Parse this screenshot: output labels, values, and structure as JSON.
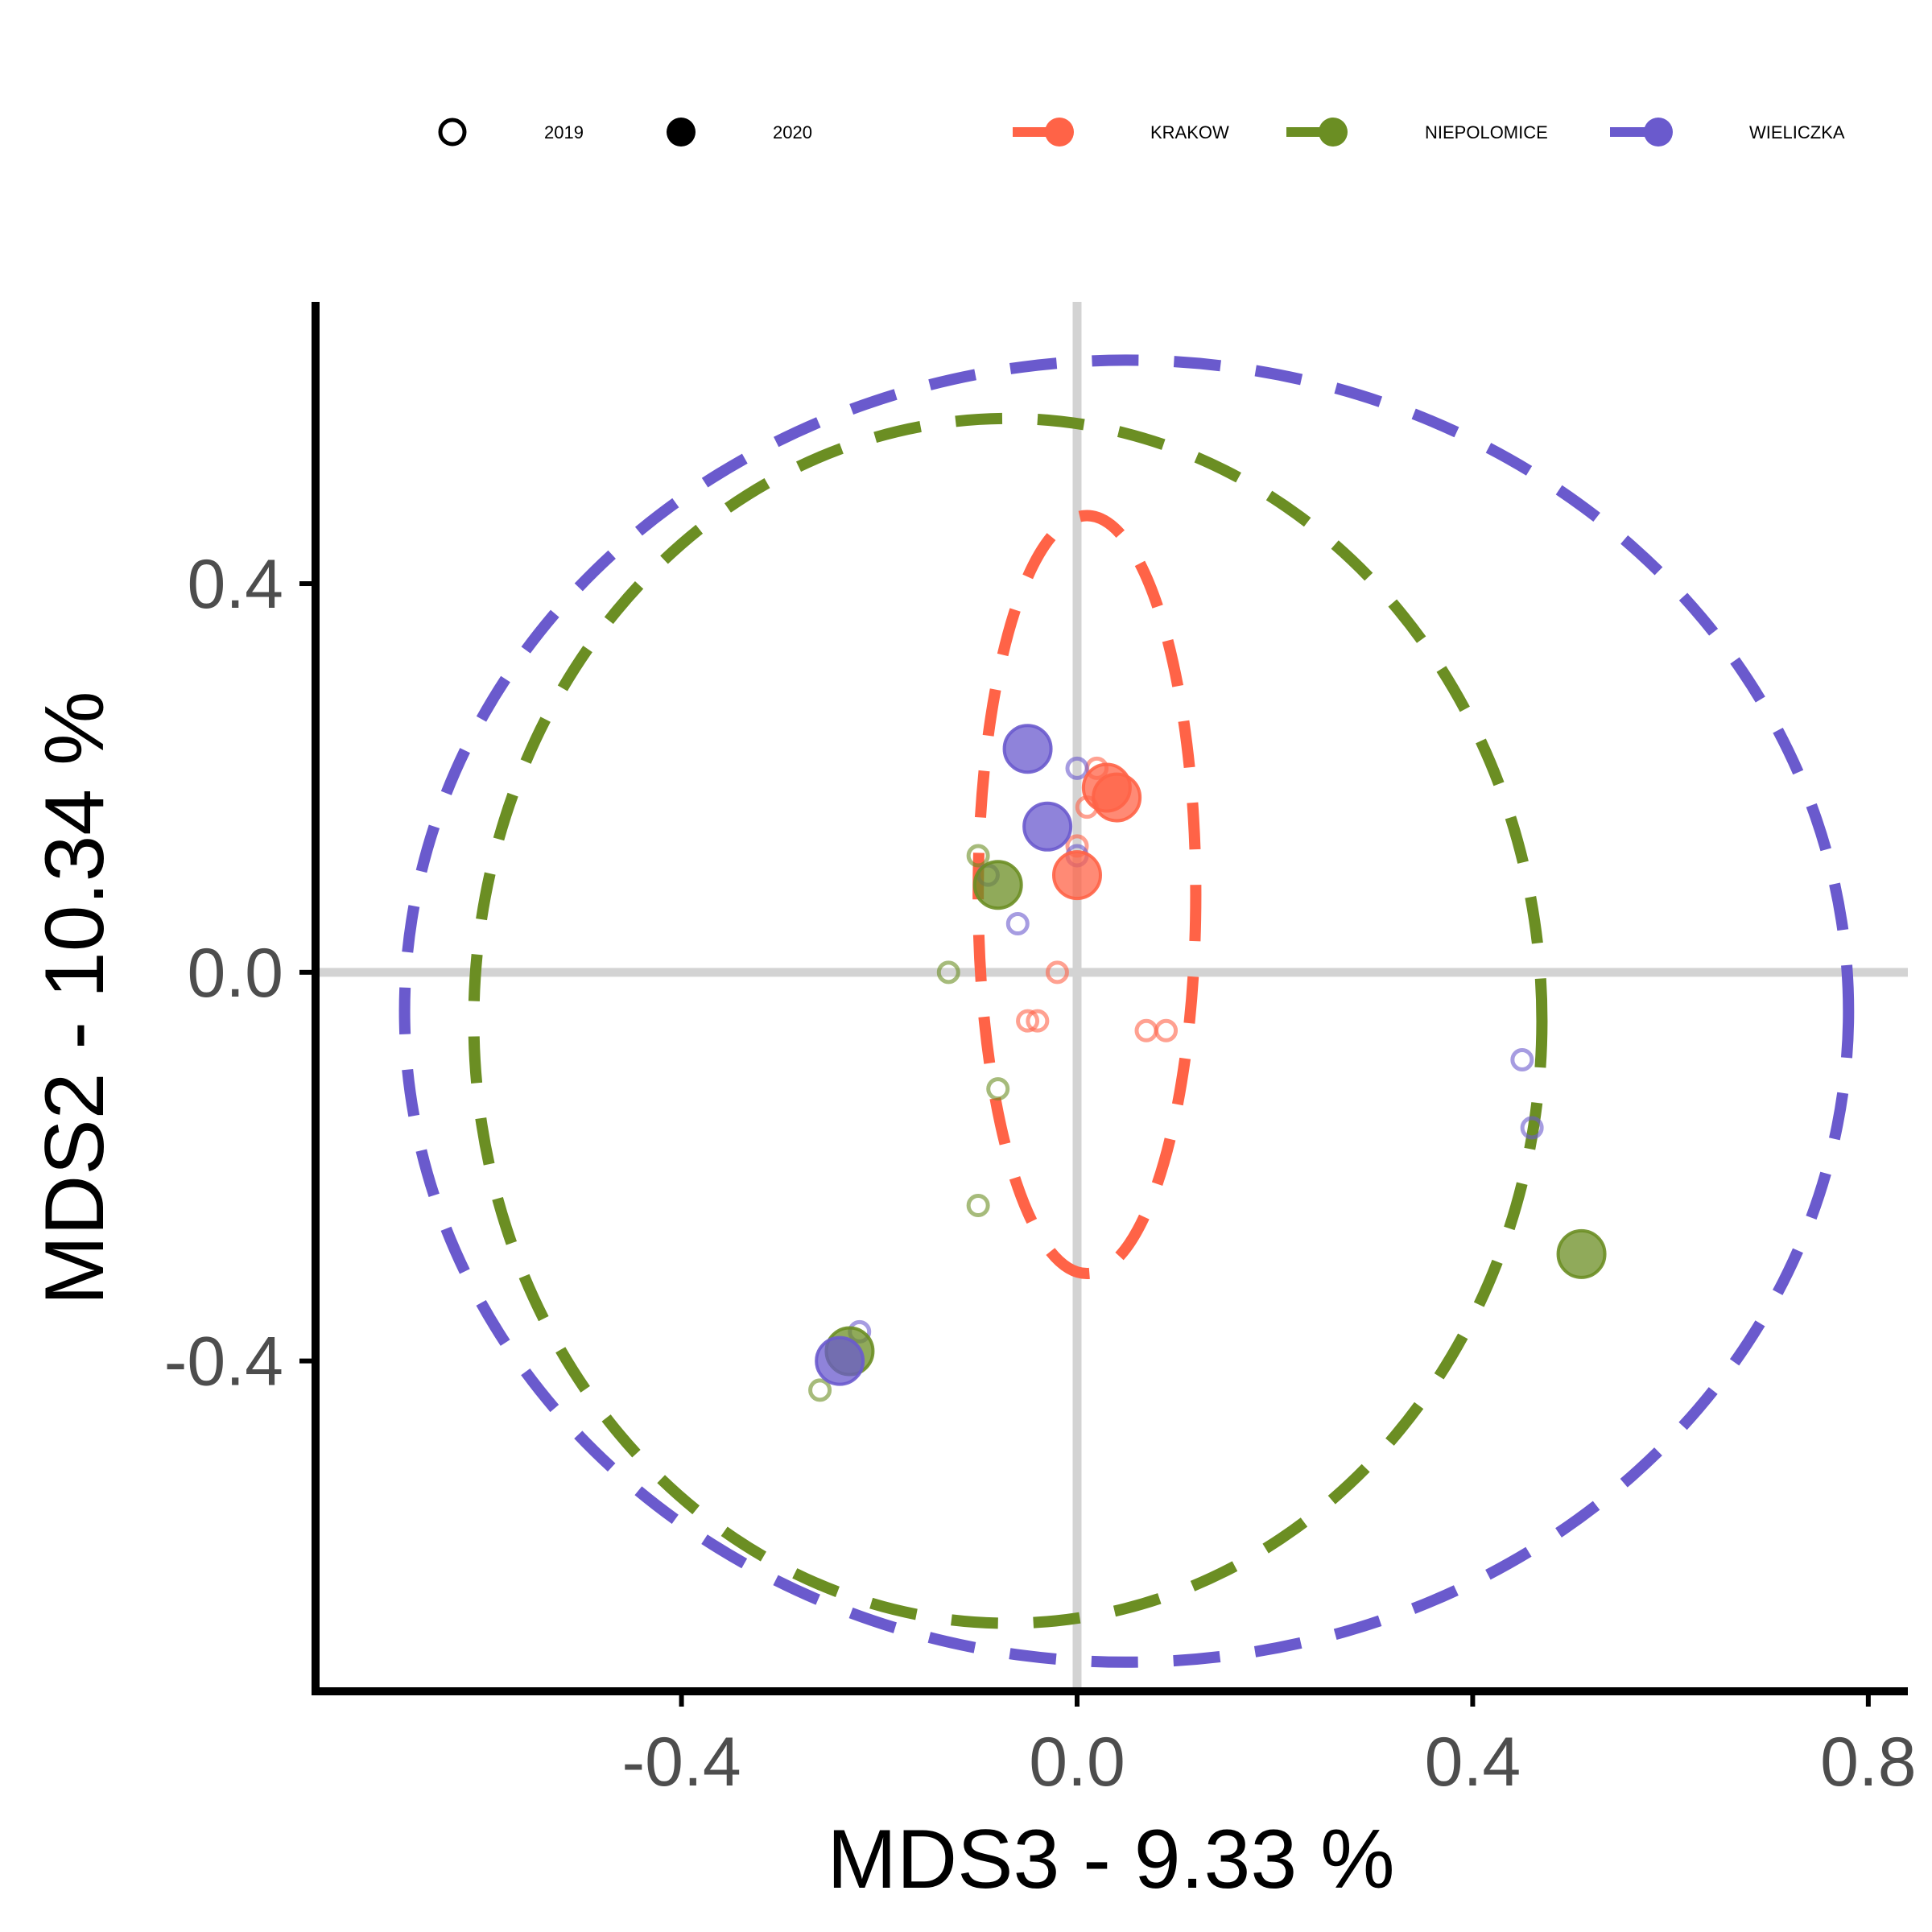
{
  "chart_data": {
    "type": "scatter",
    "title": "",
    "xlabel": "MDS3 - 9.33 %",
    "ylabel": "MDS2 - 10.34 %",
    "xlim": [
      -0.77,
      0.84
    ],
    "ylim": [
      -0.74,
      0.69
    ],
    "x_ticks": [
      -0.4,
      0.0,
      0.4,
      0.8
    ],
    "y_ticks": [
      -0.4,
      0.0,
      0.4
    ],
    "x_tick_labels": [
      "-0.4",
      "0.0",
      "0.4",
      "0.8"
    ],
    "y_tick_labels": [
      "-0.4",
      "0.0",
      "0.4"
    ],
    "reference_lines": {
      "x": 0,
      "y": 0
    },
    "grid": false,
    "legend_position": "top",
    "shape_legend": [
      {
        "label": "2019",
        "filled": false
      },
      {
        "label": "2020",
        "filled": true
      }
    ],
    "series": [
      {
        "name": "KRAKOW",
        "color": "#FF6347",
        "ellipse": {
          "cx": 0.01,
          "cy": 0.08,
          "rx": 0.11,
          "ry": 0.39
        },
        "points": [
          {
            "x": 0.02,
            "y": 0.21,
            "year": "2019",
            "size": "small"
          },
          {
            "x": 0.01,
            "y": 0.17,
            "year": "2019",
            "size": "small"
          },
          {
            "x": 0.0,
            "y": 0.13,
            "year": "2019",
            "size": "small"
          },
          {
            "x": -0.02,
            "y": 0.0,
            "year": "2019",
            "size": "small"
          },
          {
            "x": -0.05,
            "y": -0.05,
            "year": "2019",
            "size": "small"
          },
          {
            "x": -0.04,
            "y": -0.05,
            "year": "2019",
            "size": "small"
          },
          {
            "x": 0.07,
            "y": -0.06,
            "year": "2019",
            "size": "small"
          },
          {
            "x": 0.09,
            "y": -0.06,
            "year": "2019",
            "size": "small"
          },
          {
            "x": 0.03,
            "y": 0.19,
            "year": "2020",
            "size": "large"
          },
          {
            "x": 0.04,
            "y": 0.18,
            "year": "2020",
            "size": "large"
          },
          {
            "x": 0.0,
            "y": 0.1,
            "year": "2020",
            "size": "large"
          }
        ]
      },
      {
        "name": "NIEPOLOMICE",
        "color": "#6B8E23",
        "ellipse": {
          "cx": -0.07,
          "cy": -0.05,
          "rx": 0.54,
          "ry": 0.62
        },
        "points": [
          {
            "x": -0.1,
            "y": 0.12,
            "year": "2019",
            "size": "small"
          },
          {
            "x": -0.13,
            "y": 0.0,
            "year": "2019",
            "size": "small"
          },
          {
            "x": -0.08,
            "y": -0.12,
            "year": "2019",
            "size": "small"
          },
          {
            "x": -0.1,
            "y": -0.24,
            "year": "2019",
            "size": "small"
          },
          {
            "x": -0.26,
            "y": -0.43,
            "year": "2019",
            "size": "small"
          },
          {
            "x": -0.08,
            "y": 0.09,
            "year": "2020",
            "size": "large"
          },
          {
            "x": -0.23,
            "y": -0.39,
            "year": "2020",
            "size": "large"
          },
          {
            "x": 0.51,
            "y": -0.29,
            "year": "2020",
            "size": "large"
          }
        ]
      },
      {
        "name": "WIELICZKA",
        "color": "#6A5ACD",
        "ellipse": {
          "cx": 0.05,
          "cy": -0.04,
          "rx": 0.73,
          "ry": 0.67
        },
        "points": [
          {
            "x": 0.0,
            "y": 0.21,
            "year": "2019",
            "size": "small"
          },
          {
            "x": 0.0,
            "y": 0.12,
            "year": "2019",
            "size": "small"
          },
          {
            "x": -0.09,
            "y": 0.1,
            "year": "2019",
            "size": "small"
          },
          {
            "x": -0.06,
            "y": 0.05,
            "year": "2019",
            "size": "small"
          },
          {
            "x": 0.45,
            "y": -0.09,
            "year": "2019",
            "size": "small"
          },
          {
            "x": 0.46,
            "y": -0.16,
            "year": "2019",
            "size": "small"
          },
          {
            "x": -0.22,
            "y": -0.37,
            "year": "2019",
            "size": "small"
          },
          {
            "x": -0.05,
            "y": 0.23,
            "year": "2020",
            "size": "large"
          },
          {
            "x": -0.03,
            "y": 0.15,
            "year": "2020",
            "size": "large"
          },
          {
            "x": -0.24,
            "y": -0.4,
            "year": "2020",
            "size": "large"
          }
        ]
      }
    ]
  }
}
